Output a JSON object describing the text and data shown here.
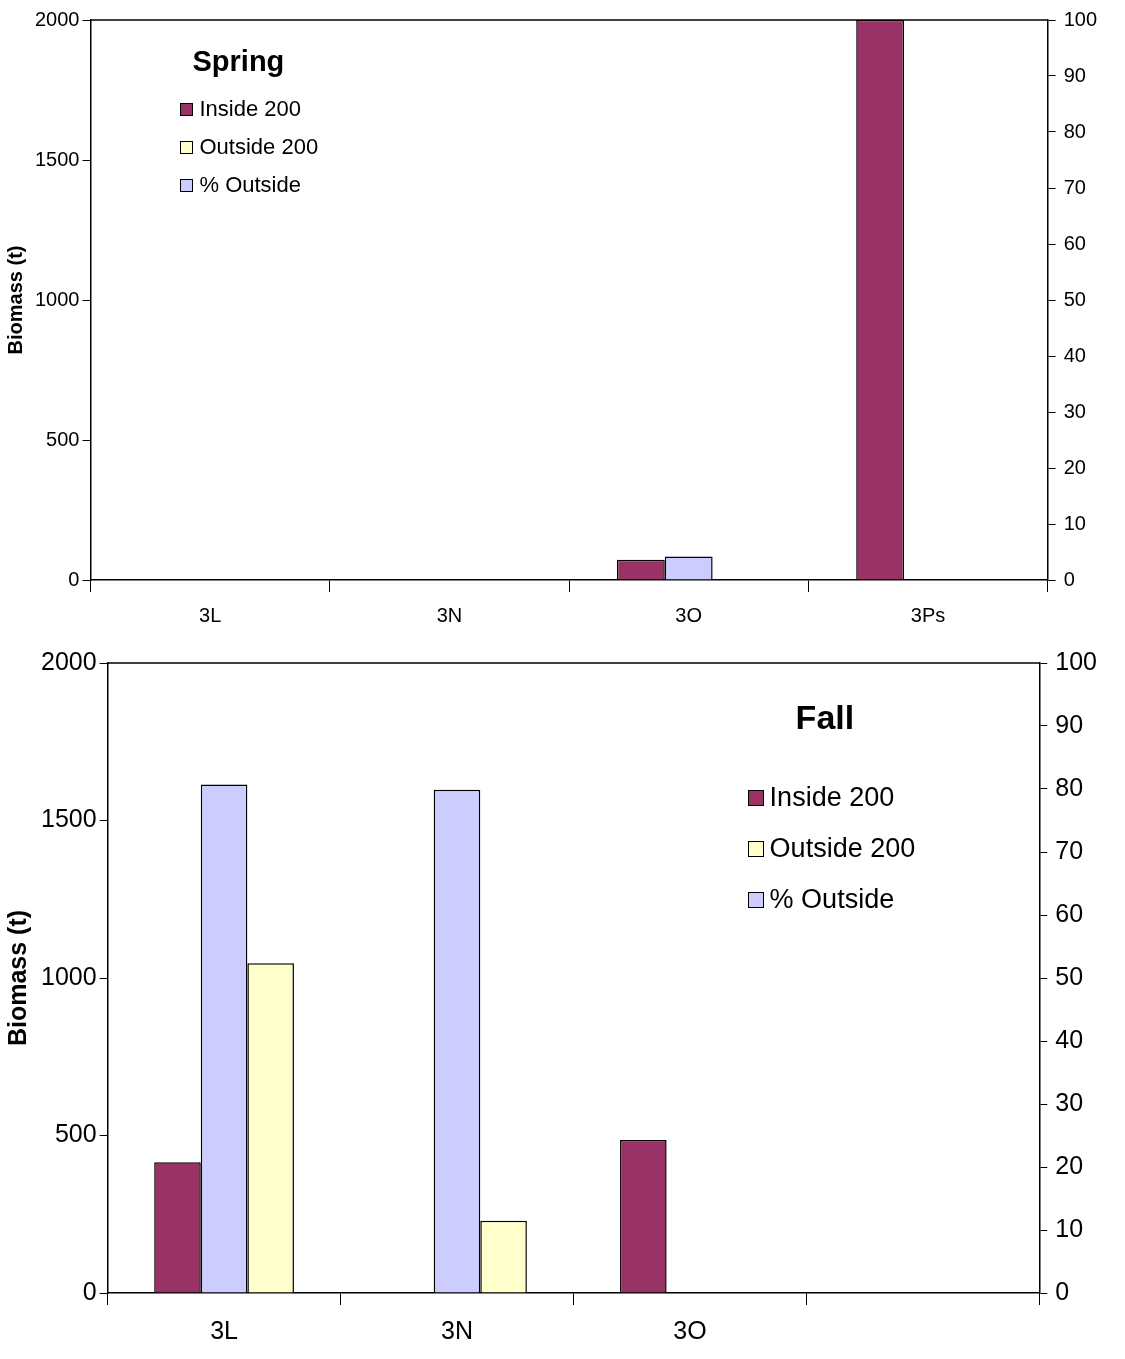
{
  "chart_data": [
    {
      "type": "bar",
      "title": "Spring",
      "ylabel": "Biomass (t)",
      "categories": [
        "3L",
        "3N",
        "3O",
        "3Ps"
      ],
      "series": [
        {
          "name": "Inside 200",
          "color": "#993366",
          "values": [
            0,
            0,
            72,
            2000
          ]
        },
        {
          "name": "% Outside",
          "color": "#ccccff",
          "axis": "y2",
          "values": [
            0,
            0,
            4.2,
            0
          ]
        },
        {
          "name": "Outside 200",
          "color": "#ffffcc",
          "values": [
            0,
            0,
            null,
            0
          ]
        }
      ],
      "ylim": [
        0,
        2000
      ],
      "yticks": [
        0,
        500,
        1000,
        1500,
        2000
      ],
      "y2lim": [
        0,
        100
      ],
      "y2ticks": [
        0,
        10,
        20,
        30,
        40,
        50,
        60,
        70,
        80,
        90,
        100
      ],
      "grid": false,
      "legend": "top left"
    },
    {
      "type": "bar",
      "title": "Fall",
      "ylabel": "Biomass (t)",
      "categories": [
        "3L",
        "3N",
        "3O",
        null
      ],
      "series": [
        {
          "name": "Inside 200",
          "color": "#993366",
          "values": [
            415,
            0,
            486,
            0
          ]
        },
        {
          "name": "% Outside",
          "color": "#ccccff",
          "axis": "y2",
          "values": [
            80.7,
            79.9,
            null,
            null
          ]
        },
        {
          "name": "Outside 200",
          "color": "#ffffcc",
          "values": [
            1047,
            229,
            null,
            0
          ]
        }
      ],
      "ylim": [
        0,
        2000
      ],
      "yticks": [
        0,
        500,
        1000,
        1500,
        2000
      ],
      "y2lim": [
        0,
        100
      ],
      "y2ticks": [
        0,
        10,
        20,
        30,
        40,
        50,
        60,
        70,
        80,
        90,
        100
      ],
      "grid": false,
      "legend": "right"
    }
  ]
}
